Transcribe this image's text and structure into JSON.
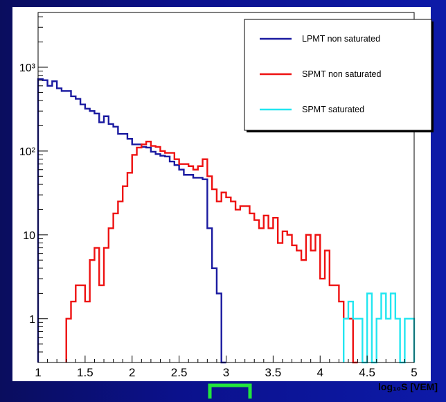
{
  "chart_data": {
    "type": "histogram",
    "x_scale": "linear",
    "y_scale": "log",
    "xlim": [
      1,
      5
    ],
    "ylim": [
      0.3,
      4500
    ],
    "xlabel": "log₁₀S [VEM]",
    "ylabel": "",
    "x_ticks": [
      "1",
      "1.5",
      "2",
      "2.5",
      "3",
      "3.5",
      "4",
      "4.5",
      "5"
    ],
    "y_ticks": [
      {
        "value": 1,
        "label": "1"
      },
      {
        "value": 10,
        "label": "10"
      },
      {
        "value": 100,
        "label": "10²"
      },
      {
        "value": 1000,
        "label": "10³"
      }
    ],
    "bin_width": 0.05,
    "legend": {
      "placement": "top-right",
      "entries": [
        {
          "label": "LPMT non saturated",
          "color": "#1a1aa0"
        },
        {
          "label": "SPMT non saturated",
          "color": "#ee1111"
        },
        {
          "label": "SPMT saturated",
          "color": "#22e6f0"
        }
      ]
    },
    "series": [
      {
        "name": "LPMT non saturated",
        "color": "#1a1aa0",
        "bins": [
          [
            1.0,
            720
          ],
          [
            1.05,
            700
          ],
          [
            1.1,
            600
          ],
          [
            1.15,
            680
          ],
          [
            1.2,
            560
          ],
          [
            1.25,
            520
          ],
          [
            1.3,
            520
          ],
          [
            1.35,
            450
          ],
          [
            1.4,
            420
          ],
          [
            1.45,
            360
          ],
          [
            1.5,
            320
          ],
          [
            1.55,
            300
          ],
          [
            1.6,
            280
          ],
          [
            1.65,
            220
          ],
          [
            1.7,
            260
          ],
          [
            1.75,
            210
          ],
          [
            1.8,
            195
          ],
          [
            1.85,
            160
          ],
          [
            1.9,
            160
          ],
          [
            1.95,
            140
          ],
          [
            2.0,
            120
          ],
          [
            2.05,
            120
          ],
          [
            2.1,
            112
          ],
          [
            2.15,
            110
          ],
          [
            2.2,
            98
          ],
          [
            2.25,
            92
          ],
          [
            2.3,
            88
          ],
          [
            2.35,
            86
          ],
          [
            2.4,
            75
          ],
          [
            2.45,
            68
          ],
          [
            2.5,
            60
          ],
          [
            2.55,
            52
          ],
          [
            2.6,
            52
          ],
          [
            2.65,
            48
          ],
          [
            2.7,
            48
          ],
          [
            2.75,
            46
          ],
          [
            2.8,
            12
          ],
          [
            2.85,
            4
          ],
          [
            2.9,
            2
          ],
          [
            2.95,
            0.3
          ]
        ]
      },
      {
        "name": "SPMT non saturated",
        "color": "#ee1111",
        "bins": [
          [
            1.3,
            1
          ],
          [
            1.35,
            1.6
          ],
          [
            1.4,
            2.5
          ],
          [
            1.45,
            2.5
          ],
          [
            1.5,
            1.6
          ],
          [
            1.55,
            5
          ],
          [
            1.6,
            7
          ],
          [
            1.65,
            2.5
          ],
          [
            1.7,
            7
          ],
          [
            1.75,
            12
          ],
          [
            1.8,
            18
          ],
          [
            1.85,
            25
          ],
          [
            1.9,
            38
          ],
          [
            1.95,
            55
          ],
          [
            2.0,
            90
          ],
          [
            2.05,
            110
          ],
          [
            2.1,
            120
          ],
          [
            2.15,
            130
          ],
          [
            2.2,
            115
          ],
          [
            2.25,
            112
          ],
          [
            2.3,
            100
          ],
          [
            2.35,
            95
          ],
          [
            2.4,
            95
          ],
          [
            2.45,
            80
          ],
          [
            2.5,
            70
          ],
          [
            2.55,
            70
          ],
          [
            2.6,
            66
          ],
          [
            2.65,
            60
          ],
          [
            2.7,
            66
          ],
          [
            2.75,
            80
          ],
          [
            2.8,
            50
          ],
          [
            2.85,
            35
          ],
          [
            2.9,
            25
          ],
          [
            2.95,
            32
          ],
          [
            3.0,
            28
          ],
          [
            3.05,
            25
          ],
          [
            3.1,
            20
          ],
          [
            3.15,
            22
          ],
          [
            3.2,
            22
          ],
          [
            3.25,
            18
          ],
          [
            3.3,
            15
          ],
          [
            3.35,
            12
          ],
          [
            3.4,
            17
          ],
          [
            3.45,
            12
          ],
          [
            3.5,
            16
          ],
          [
            3.55,
            8
          ],
          [
            3.6,
            11
          ],
          [
            3.65,
            10
          ],
          [
            3.7,
            7.5
          ],
          [
            3.75,
            6.5
          ],
          [
            3.8,
            5
          ],
          [
            3.85,
            10
          ],
          [
            3.9,
            6.5
          ],
          [
            3.95,
            10
          ],
          [
            4.0,
            3
          ],
          [
            4.05,
            6.5
          ],
          [
            4.1,
            2.5
          ],
          [
            4.15,
            2.5
          ],
          [
            4.2,
            1.6
          ],
          [
            4.25,
            1
          ],
          [
            4.3,
            1
          ],
          [
            4.35,
            0.3
          ]
        ]
      },
      {
        "name": "SPMT saturated",
        "color": "#22e6f0",
        "bins": [
          [
            4.25,
            1
          ],
          [
            4.3,
            1.6
          ],
          [
            4.35,
            1
          ],
          [
            4.4,
            1
          ],
          [
            4.45,
            0.3
          ],
          [
            4.5,
            2
          ],
          [
            4.55,
            0.3
          ],
          [
            4.6,
            1
          ],
          [
            4.65,
            2
          ],
          [
            4.7,
            1
          ],
          [
            4.75,
            2
          ],
          [
            4.8,
            1
          ],
          [
            4.85,
            0.3
          ],
          [
            4.9,
            1
          ],
          [
            4.95,
            1
          ]
        ]
      }
    ]
  }
}
